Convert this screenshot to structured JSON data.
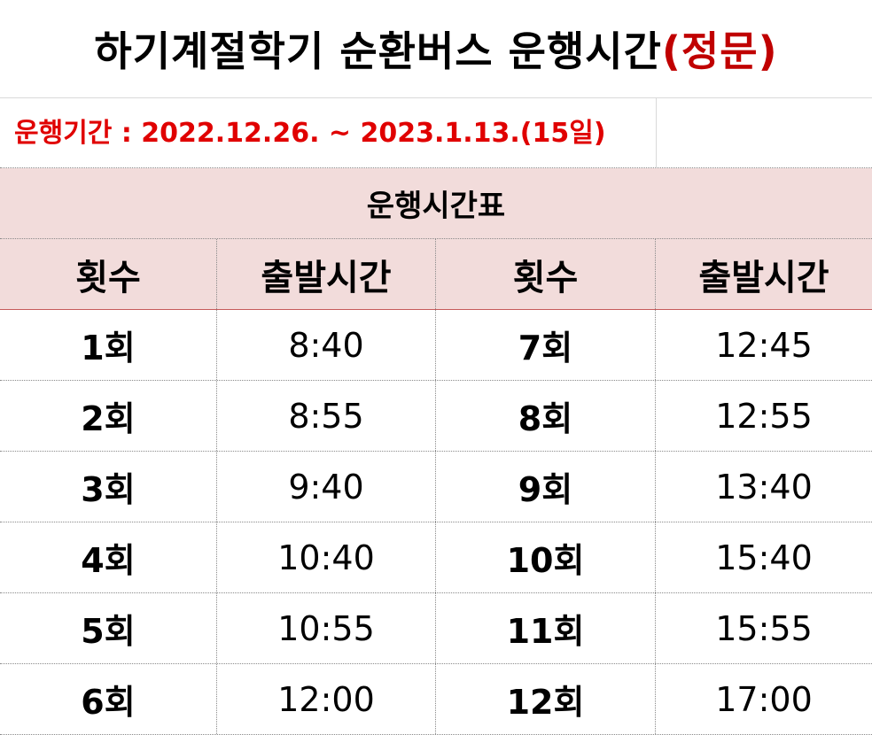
{
  "title": {
    "main": "하기계절학기 순환버스 운행시간",
    "accent": "(정문)",
    "accent_color": "#c00000"
  },
  "period": {
    "text": "운행기간 : 2022.12.26. ~ 2023.1.13.(15일)",
    "color": "#e00000"
  },
  "schedule": {
    "title": "운행시간표",
    "header_bg": "#f2dcdb",
    "columns": [
      "횟수",
      "출발시간",
      "횟수",
      "출발시간"
    ],
    "rows": [
      {
        "left_trip": "1회",
        "left_time": "8:40",
        "right_trip": "7회",
        "right_time": "12:45"
      },
      {
        "left_trip": "2회",
        "left_time": "8:55",
        "right_trip": "8회",
        "right_time": "12:55"
      },
      {
        "left_trip": "3회",
        "left_time": "9:40",
        "right_trip": "9회",
        "right_time": "13:40"
      },
      {
        "left_trip": "4회",
        "left_time": "10:40",
        "right_trip": "10회",
        "right_time": "15:40"
      },
      {
        "left_trip": "5회",
        "left_time": "10:55",
        "right_trip": "11회",
        "right_time": "15:55"
      },
      {
        "left_trip": "6회",
        "left_time": "12:00",
        "right_trip": "12회",
        "right_time": "17:00"
      }
    ]
  }
}
